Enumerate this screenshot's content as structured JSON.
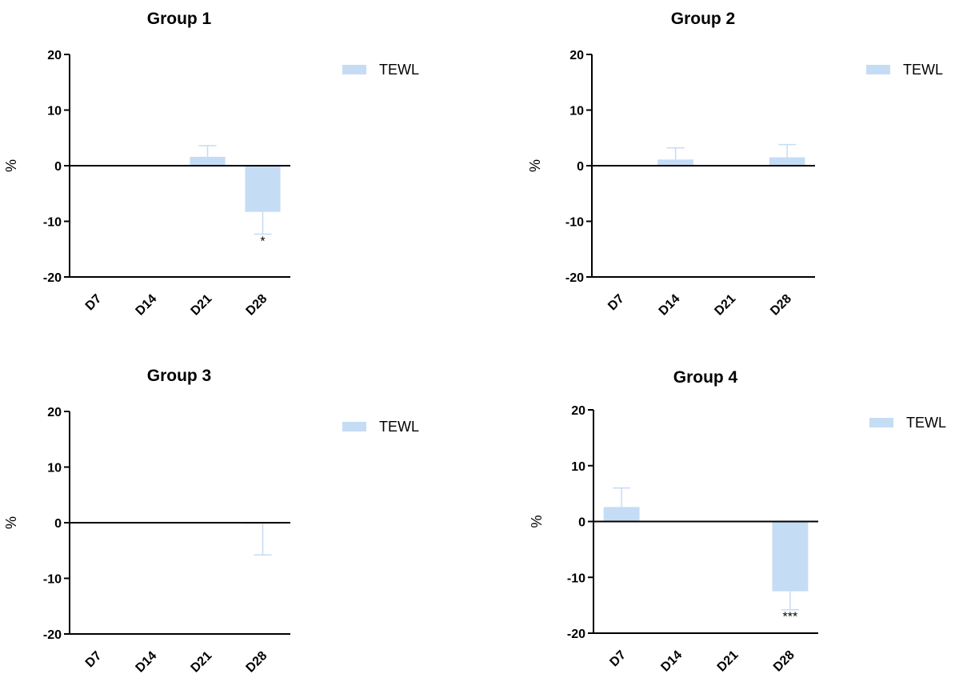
{
  "chart_data": [
    {
      "type": "bar",
      "title": "Group 1",
      "ylabel": "%",
      "ylim": [
        -20,
        20
      ],
      "yticks": [
        -20,
        -10,
        0,
        10,
        20
      ],
      "categories": [
        "D7",
        "D14",
        "D21",
        "D28"
      ],
      "series": [
        {
          "name": "TEWL",
          "color": "#c5dcf5",
          "values": [
            0,
            0,
            1.6,
            -8.3
          ],
          "errors": [
            0,
            0,
            2.0,
            4.0
          ],
          "annotations": [
            "",
            "",
            "",
            "*"
          ]
        }
      ],
      "legend": "top-right"
    },
    {
      "type": "bar",
      "title": "Group 2",
      "ylabel": "%",
      "ylim": [
        -20,
        20
      ],
      "yticks": [
        -20,
        -10,
        0,
        10,
        20
      ],
      "categories": [
        "D7",
        "D14",
        "D21",
        "D28"
      ],
      "series": [
        {
          "name": "TEWL",
          "color": "#c5dcf5",
          "values": [
            0,
            1.1,
            0,
            1.5
          ],
          "errors": [
            0,
            2.1,
            0,
            2.3
          ],
          "annotations": [
            "",
            "",
            "",
            ""
          ]
        }
      ],
      "legend": "top-right"
    },
    {
      "type": "bar",
      "title": "Group 3",
      "ylabel": "%",
      "ylim": [
        -20,
        20
      ],
      "yticks": [
        -20,
        -10,
        0,
        10,
        20
      ],
      "categories": [
        "D7",
        "D14",
        "D21",
        "D28"
      ],
      "series": [
        {
          "name": "TEWL",
          "color": "#c5dcf5",
          "values": [
            0,
            0,
            0,
            -0.2
          ],
          "errors": [
            0,
            0,
            0,
            5.6
          ],
          "annotations": [
            "",
            "",
            "",
            ""
          ]
        }
      ],
      "legend": "top-right"
    },
    {
      "type": "bar",
      "title": "Group 4",
      "ylabel": "%",
      "ylim": [
        -20,
        20
      ],
      "yticks": [
        -20,
        -10,
        0,
        10,
        20
      ],
      "categories": [
        "D7",
        "D14",
        "D21",
        "D28"
      ],
      "series": [
        {
          "name": "TEWL",
          "color": "#c5dcf5",
          "values": [
            2.6,
            0,
            0,
            -12.5
          ],
          "errors": [
            3.4,
            0,
            0,
            3.3
          ],
          "annotations": [
            "",
            "",
            "",
            "***"
          ]
        }
      ],
      "legend": "top-right"
    }
  ]
}
